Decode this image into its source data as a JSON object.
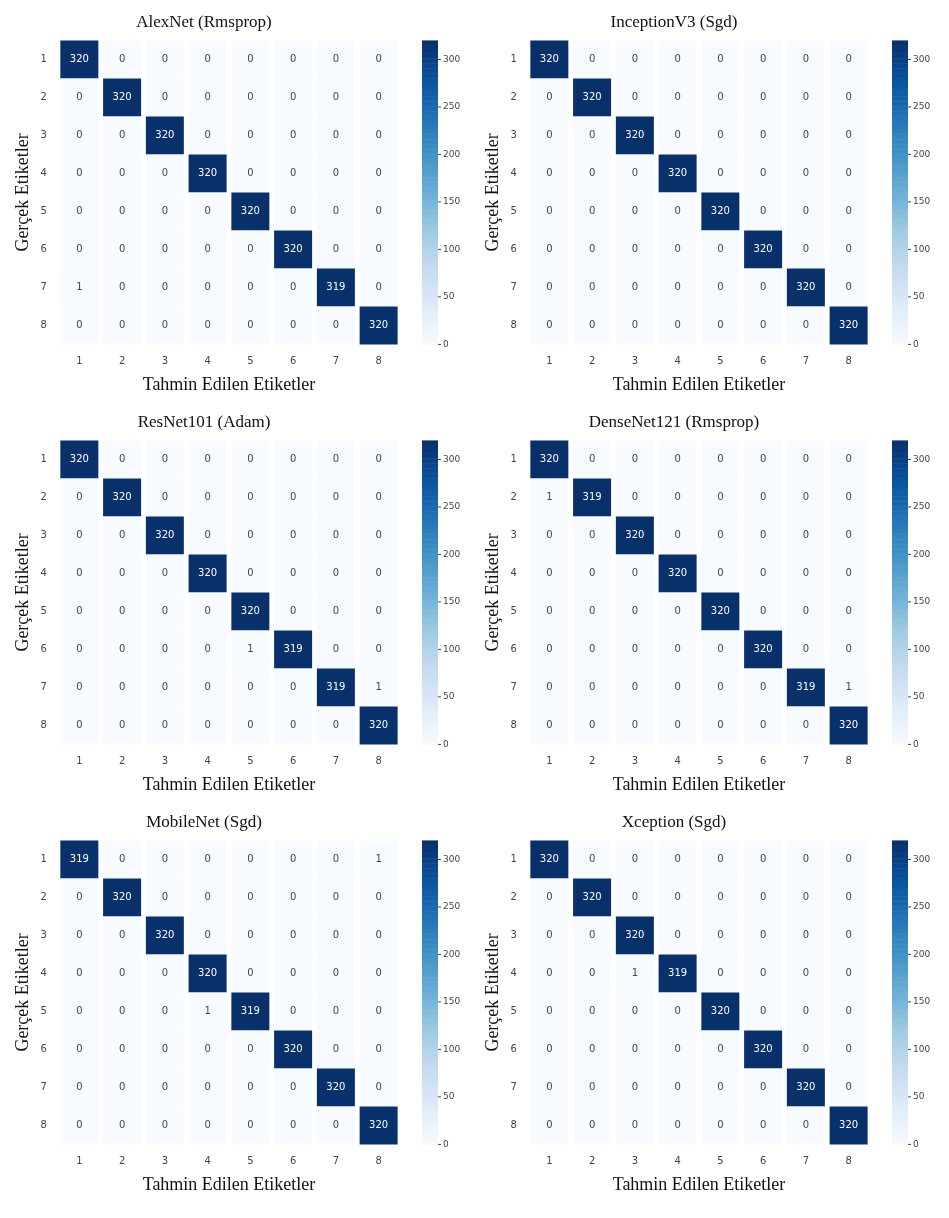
{
  "chart_data": [
    {
      "type": "heatmap",
      "title": "AlexNet (Rmsprop)",
      "xlabel": "Tahmin Edilen Etiketler",
      "ylabel": "Gerçek Etiketler",
      "categories": [
        "1",
        "2",
        "3",
        "4",
        "5",
        "6",
        "7",
        "8"
      ],
      "y_categories": [
        "1",
        "2",
        "3",
        "4",
        "5",
        "6",
        "7",
        "8"
      ],
      "clim": [
        0,
        320
      ],
      "cticks": [
        0,
        50,
        100,
        150,
        200,
        250,
        300
      ],
      "data_labels": true,
      "cells": [
        [
          320,
          0,
          0,
          0,
          0,
          0,
          0,
          0
        ],
        [
          0,
          320,
          0,
          0,
          0,
          0,
          0,
          0
        ],
        [
          0,
          0,
          320,
          0,
          0,
          0,
          0,
          0
        ],
        [
          0,
          0,
          0,
          320,
          0,
          0,
          0,
          0
        ],
        [
          0,
          0,
          0,
          0,
          320,
          0,
          0,
          0
        ],
        [
          0,
          0,
          0,
          0,
          0,
          320,
          0,
          0
        ],
        [
          1,
          0,
          0,
          0,
          0,
          0,
          319,
          0
        ],
        [
          0,
          0,
          0,
          0,
          0,
          0,
          0,
          320
        ]
      ]
    },
    {
      "type": "heatmap",
      "title": "InceptionV3 (Sgd)",
      "xlabel": "Tahmin Edilen Etiketler",
      "ylabel": "Gerçek Etiketler",
      "categories": [
        "1",
        "2",
        "3",
        "4",
        "5",
        "6",
        "7",
        "8"
      ],
      "y_categories": [
        "1",
        "2",
        "3",
        "4",
        "5",
        "6",
        "7",
        "8"
      ],
      "clim": [
        0,
        320
      ],
      "cticks": [
        0,
        50,
        100,
        150,
        200,
        250,
        300
      ],
      "data_labels": true,
      "cells": [
        [
          320,
          0,
          0,
          0,
          0,
          0,
          0,
          0
        ],
        [
          0,
          320,
          0,
          0,
          0,
          0,
          0,
          0
        ],
        [
          0,
          0,
          320,
          0,
          0,
          0,
          0,
          0
        ],
        [
          0,
          0,
          0,
          320,
          0,
          0,
          0,
          0
        ],
        [
          0,
          0,
          0,
          0,
          320,
          0,
          0,
          0
        ],
        [
          0,
          0,
          0,
          0,
          0,
          320,
          0,
          0
        ],
        [
          0,
          0,
          0,
          0,
          0,
          0,
          320,
          0
        ],
        [
          0,
          0,
          0,
          0,
          0,
          0,
          0,
          320
        ]
      ]
    },
    {
      "type": "heatmap",
      "title": "ResNet101 (Adam)",
      "xlabel": "Tahmin Edilen Etiketler",
      "ylabel": "Gerçek Etiketler",
      "categories": [
        "1",
        "2",
        "3",
        "4",
        "5",
        "6",
        "7",
        "8"
      ],
      "y_categories": [
        "1",
        "2",
        "3",
        "4",
        "5",
        "6",
        "7",
        "8"
      ],
      "clim": [
        0,
        320
      ],
      "cticks": [
        0,
        50,
        100,
        150,
        200,
        250,
        300
      ],
      "data_labels": true,
      "cells": [
        [
          320,
          0,
          0,
          0,
          0,
          0,
          0,
          0
        ],
        [
          0,
          320,
          0,
          0,
          0,
          0,
          0,
          0
        ],
        [
          0,
          0,
          320,
          0,
          0,
          0,
          0,
          0
        ],
        [
          0,
          0,
          0,
          320,
          0,
          0,
          0,
          0
        ],
        [
          0,
          0,
          0,
          0,
          320,
          0,
          0,
          0
        ],
        [
          0,
          0,
          0,
          0,
          1,
          319,
          0,
          0
        ],
        [
          0,
          0,
          0,
          0,
          0,
          0,
          319,
          1
        ],
        [
          0,
          0,
          0,
          0,
          0,
          0,
          0,
          320
        ]
      ]
    },
    {
      "type": "heatmap",
      "title": "DenseNet121 (Rmsprop)",
      "xlabel": "Tahmin Edilen Etiketler",
      "ylabel": "Gerçek Etiketler",
      "categories": [
        "1",
        "2",
        "3",
        "4",
        "5",
        "6",
        "7",
        "8"
      ],
      "y_categories": [
        "1",
        "2",
        "3",
        "4",
        "5",
        "6",
        "7",
        "8"
      ],
      "clim": [
        0,
        320
      ],
      "cticks": [
        0,
        50,
        100,
        150,
        200,
        250,
        300
      ],
      "data_labels": true,
      "cells": [
        [
          320,
          0,
          0,
          0,
          0,
          0,
          0,
          0
        ],
        [
          1,
          319,
          0,
          0,
          0,
          0,
          0,
          0
        ],
        [
          0,
          0,
          320,
          0,
          0,
          0,
          0,
          0
        ],
        [
          0,
          0,
          0,
          320,
          0,
          0,
          0,
          0
        ],
        [
          0,
          0,
          0,
          0,
          320,
          0,
          0,
          0
        ],
        [
          0,
          0,
          0,
          0,
          0,
          320,
          0,
          0
        ],
        [
          0,
          0,
          0,
          0,
          0,
          0,
          319,
          1
        ],
        [
          0,
          0,
          0,
          0,
          0,
          0,
          0,
          320
        ]
      ]
    },
    {
      "type": "heatmap",
      "title": "MobileNet (Sgd)",
      "xlabel": "Tahmin Edilen Etiketler",
      "ylabel": "Gerçek Etiketler",
      "categories": [
        "1",
        "2",
        "3",
        "4",
        "5",
        "6",
        "7",
        "8"
      ],
      "y_categories": [
        "1",
        "2",
        "3",
        "4",
        "5",
        "6",
        "7",
        "8"
      ],
      "clim": [
        0,
        320
      ],
      "cticks": [
        0,
        50,
        100,
        150,
        200,
        250,
        300
      ],
      "data_labels": true,
      "cells": [
        [
          319,
          0,
          0,
          0,
          0,
          0,
          0,
          1
        ],
        [
          0,
          320,
          0,
          0,
          0,
          0,
          0,
          0
        ],
        [
          0,
          0,
          320,
          0,
          0,
          0,
          0,
          0
        ],
        [
          0,
          0,
          0,
          320,
          0,
          0,
          0,
          0
        ],
        [
          0,
          0,
          0,
          1,
          319,
          0,
          0,
          0
        ],
        [
          0,
          0,
          0,
          0,
          0,
          320,
          0,
          0
        ],
        [
          0,
          0,
          0,
          0,
          0,
          0,
          320,
          0
        ],
        [
          0,
          0,
          0,
          0,
          0,
          0,
          0,
          320
        ]
      ]
    },
    {
      "type": "heatmap",
      "title": "Xception (Sgd)",
      "xlabel": "Tahmin Edilen Etiketler",
      "ylabel": "Gerçek Etiketler",
      "categories": [
        "1",
        "2",
        "3",
        "4",
        "5",
        "6",
        "7",
        "8"
      ],
      "y_categories": [
        "1",
        "2",
        "3",
        "4",
        "5",
        "6",
        "7",
        "8"
      ],
      "clim": [
        0,
        320
      ],
      "cticks": [
        0,
        50,
        100,
        150,
        200,
        250,
        300
      ],
      "data_labels": true,
      "cells": [
        [
          320,
          0,
          0,
          0,
          0,
          0,
          0,
          0
        ],
        [
          0,
          320,
          0,
          0,
          0,
          0,
          0,
          0
        ],
        [
          0,
          0,
          320,
          0,
          0,
          0,
          0,
          0
        ],
        [
          0,
          0,
          1,
          319,
          0,
          0,
          0,
          0
        ],
        [
          0,
          0,
          0,
          0,
          320,
          0,
          0,
          0
        ],
        [
          0,
          0,
          0,
          0,
          0,
          320,
          0,
          0
        ],
        [
          0,
          0,
          0,
          0,
          0,
          0,
          320,
          0
        ],
        [
          0,
          0,
          0,
          0,
          0,
          0,
          0,
          320
        ]
      ]
    }
  ]
}
